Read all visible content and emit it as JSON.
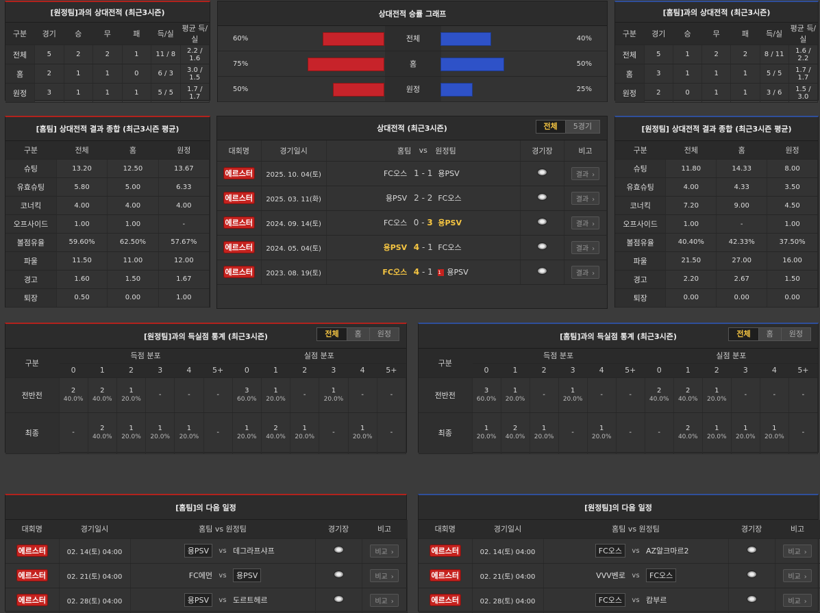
{
  "h2h_away": {
    "title": "[원정팀]과의 상대전적 (최근3시즌)",
    "headers": [
      "구분",
      "경기",
      "승",
      "무",
      "패",
      "득/실",
      "평균 득/실"
    ],
    "rows": [
      [
        "전체",
        "5",
        "2",
        "2",
        "1",
        "11 / 8",
        "2.2 / 1.6"
      ],
      [
        "홈",
        "2",
        "1",
        "1",
        "0",
        "6 / 3",
        "3.0 / 1.5"
      ],
      [
        "원정",
        "3",
        "1",
        "1",
        "1",
        "5 / 5",
        "1.7 / 1.7"
      ]
    ]
  },
  "graph": {
    "title": "상대전적 승률 그래프",
    "rows": [
      {
        "label": "전체",
        "left": "60%",
        "right": "40%",
        "left_val": 0.6,
        "right_val": 0.4
      },
      {
        "label": "홈",
        "left": "75%",
        "right": "50%",
        "left_val": 0.75,
        "right_val": 0.5
      },
      {
        "label": "원정",
        "left": "50%",
        "right": "25%",
        "left_val": 0.5,
        "right_val": 0.25
      }
    ]
  },
  "h2h_home": {
    "title": "[홈팀]과의 상대전적 (최근3시즌)",
    "headers": [
      "구분",
      "경기",
      "승",
      "무",
      "패",
      "득/실",
      "평균 득/실"
    ],
    "rows": [
      [
        "전체",
        "5",
        "1",
        "2",
        "2",
        "8 / 11",
        "1.6 / 2.2"
      ],
      [
        "홈",
        "3",
        "1",
        "1",
        "1",
        "5 / 5",
        "1.7 / 1.7"
      ],
      [
        "원정",
        "2",
        "0",
        "1",
        "1",
        "3 / 6",
        "1.5 / 3.0"
      ]
    ]
  },
  "summary_home": {
    "title": "[홈팀] 상대전적 결과 종합 (최근3시즌 평균)",
    "headers": [
      "구분",
      "전체",
      "홈",
      "원정"
    ],
    "rows": [
      [
        "슈팅",
        "13.20",
        "12.50",
        "13.67"
      ],
      [
        "유효슈팅",
        "5.80",
        "5.00",
        "6.33"
      ],
      [
        "코너킥",
        "4.00",
        "4.00",
        "4.00"
      ],
      [
        "오프사이드",
        "1.00",
        "1.00",
        "-"
      ],
      [
        "볼점유율",
        "59.60%",
        "62.50%",
        "57.67%"
      ],
      [
        "파울",
        "11.50",
        "11.00",
        "12.00"
      ],
      [
        "경고",
        "1.60",
        "1.50",
        "1.67"
      ],
      [
        "퇴장",
        "0.50",
        "0.00",
        "1.00"
      ]
    ]
  },
  "summary_away": {
    "title": "[원정팀] 상대전적 결과 종합 (최근3시즌 평균)",
    "headers": [
      "구분",
      "전체",
      "홈",
      "원정"
    ],
    "rows": [
      [
        "슈팅",
        "11.80",
        "14.33",
        "8.00"
      ],
      [
        "유효슈팅",
        "4.00",
        "4.33",
        "3.50"
      ],
      [
        "코너킥",
        "7.20",
        "9.00",
        "4.50"
      ],
      [
        "오프사이드",
        "1.00",
        "-",
        "1.00"
      ],
      [
        "볼점유율",
        "40.40%",
        "42.33%",
        "37.50%"
      ],
      [
        "파울",
        "21.50",
        "27.00",
        "16.00"
      ],
      [
        "경고",
        "2.20",
        "2.67",
        "1.50"
      ],
      [
        "퇴장",
        "0.00",
        "0.00",
        "0.00"
      ]
    ]
  },
  "h2h_matches": {
    "title": "상대전적 (최근3시즌)",
    "tabs": [
      "전체",
      "5경기"
    ],
    "headers": {
      "league": "대회명",
      "date": "경기일시",
      "home": "홈팀",
      "vs": "vs",
      "away": "원정팀",
      "stadium": "경기장",
      "note": "비고"
    },
    "result_label": "결과",
    "rows": [
      {
        "league": "에르스터",
        "date": "2025. 10. 04(토)",
        "home": "FC오스",
        "hs": "1",
        "as": "1",
        "away": "용PSV",
        "win": "none",
        "card": ""
      },
      {
        "league": "에르스터",
        "date": "2025. 03. 11(화)",
        "home": "용PSV",
        "hs": "2",
        "as": "2",
        "away": "FC오스",
        "win": "none",
        "card": ""
      },
      {
        "league": "에르스터",
        "date": "2024. 09. 14(토)",
        "home": "FC오스",
        "hs": "0",
        "as": "3",
        "away": "용PSV",
        "win": "away",
        "card": ""
      },
      {
        "league": "에르스터",
        "date": "2024. 05. 04(토)",
        "home": "용PSV",
        "hs": "4",
        "as": "1",
        "away": "FC오스",
        "win": "home",
        "card": ""
      },
      {
        "league": "에르스터",
        "date": "2023. 08. 19(토)",
        "home": "FC오스",
        "hs": "4",
        "as": "1",
        "away": "용PSV",
        "win": "home",
        "card": "1"
      }
    ]
  },
  "goals_left": {
    "title": "[원정팀]과의 득실점 통계 (최근3시즌)",
    "tabs": [
      "전체",
      "홈",
      "원정"
    ],
    "label_col": "구분",
    "scored_label": "득점 분포",
    "conceded_label": "실점 분포",
    "buckets": [
      "0",
      "1",
      "2",
      "3",
      "4",
      "5+"
    ],
    "rows": [
      {
        "label": "전반전",
        "cells": [
          [
            "2",
            "40.0%"
          ],
          [
            "2",
            "40.0%"
          ],
          [
            "1",
            "20.0%"
          ],
          [
            "-",
            ""
          ],
          [
            "-",
            ""
          ],
          [
            "-",
            ""
          ],
          [
            "3",
            "60.0%"
          ],
          [
            "1",
            "20.0%"
          ],
          [
            "-",
            ""
          ],
          [
            "1",
            "20.0%"
          ],
          [
            "-",
            ""
          ],
          [
            "-",
            ""
          ]
        ]
      },
      {
        "label": "최종",
        "cells": [
          [
            "-",
            ""
          ],
          [
            "2",
            "40.0%"
          ],
          [
            "1",
            "20.0%"
          ],
          [
            "1",
            "20.0%"
          ],
          [
            "1",
            "20.0%"
          ],
          [
            "-",
            ""
          ],
          [
            "1",
            "20.0%"
          ],
          [
            "2",
            "40.0%"
          ],
          [
            "1",
            "20.0%"
          ],
          [
            "-",
            ""
          ],
          [
            "1",
            "20.0%"
          ],
          [
            "-",
            ""
          ]
        ]
      }
    ]
  },
  "goals_right": {
    "title": "[홈팀]과의 득실점 통계 (최근3시즌)",
    "tabs": [
      "전체",
      "홈",
      "원정"
    ],
    "label_col": "구분",
    "scored_label": "득점 분포",
    "conceded_label": "실점 분포",
    "buckets": [
      "0",
      "1",
      "2",
      "3",
      "4",
      "5+"
    ],
    "rows": [
      {
        "label": "전반전",
        "cells": [
          [
            "3",
            "60.0%"
          ],
          [
            "1",
            "20.0%"
          ],
          [
            "-",
            ""
          ],
          [
            "1",
            "20.0%"
          ],
          [
            "-",
            ""
          ],
          [
            "-",
            ""
          ],
          [
            "2",
            "40.0%"
          ],
          [
            "2",
            "40.0%"
          ],
          [
            "1",
            "20.0%"
          ],
          [
            "-",
            ""
          ],
          [
            "-",
            ""
          ],
          [
            "-",
            ""
          ]
        ]
      },
      {
        "label": "최종",
        "cells": [
          [
            "1",
            "20.0%"
          ],
          [
            "2",
            "40.0%"
          ],
          [
            "1",
            "20.0%"
          ],
          [
            "-",
            ""
          ],
          [
            "1",
            "20.0%"
          ],
          [
            "-",
            ""
          ],
          [
            "-",
            ""
          ],
          [
            "2",
            "40.0%"
          ],
          [
            "1",
            "20.0%"
          ],
          [
            "1",
            "20.0%"
          ],
          [
            "1",
            "20.0%"
          ],
          [
            "-",
            ""
          ]
        ]
      }
    ]
  },
  "next_home": {
    "title": "[홈팀]의 다음 일정",
    "headers": {
      "league": "대회명",
      "date": "경기일시",
      "teams": "홈팀  vs  원정팀",
      "stadium": "경기장",
      "note": "비고"
    },
    "btn": "비교",
    "rows": [
      {
        "league": "에르스터",
        "date": "02. 14(토) 04:00",
        "home": "용PSV",
        "away": "데그라프샤프",
        "hl": "home"
      },
      {
        "league": "에르스터",
        "date": "02. 21(토) 04:00",
        "home": "FC에먼",
        "away": "용PSV",
        "hl": "away"
      },
      {
        "league": "에르스터",
        "date": "02. 28(토) 04:00",
        "home": "용PSV",
        "away": "도르트헤르",
        "hl": "home"
      }
    ]
  },
  "next_away": {
    "title": "[원정팀]의 다음 일정",
    "headers": {
      "league": "대회명",
      "date": "경기일시",
      "teams": "홈팀  vs  원정팀",
      "stadium": "경기장",
      "note": "비고"
    },
    "btn": "비교",
    "rows": [
      {
        "league": "에르스터",
        "date": "02. 14(토) 04:00",
        "home": "FC오스",
        "away": "AZ알크마르2",
        "hl": "home"
      },
      {
        "league": "에르스터",
        "date": "02. 21(토) 04:00",
        "home": "VVV벤로",
        "away": "FC오스",
        "hl": "away"
      },
      {
        "league": "에르스터",
        "date": "02. 28(토) 04:00",
        "home": "FC오스",
        "away": "캄부르",
        "hl": "home"
      }
    ]
  },
  "vs_label": "vs"
}
